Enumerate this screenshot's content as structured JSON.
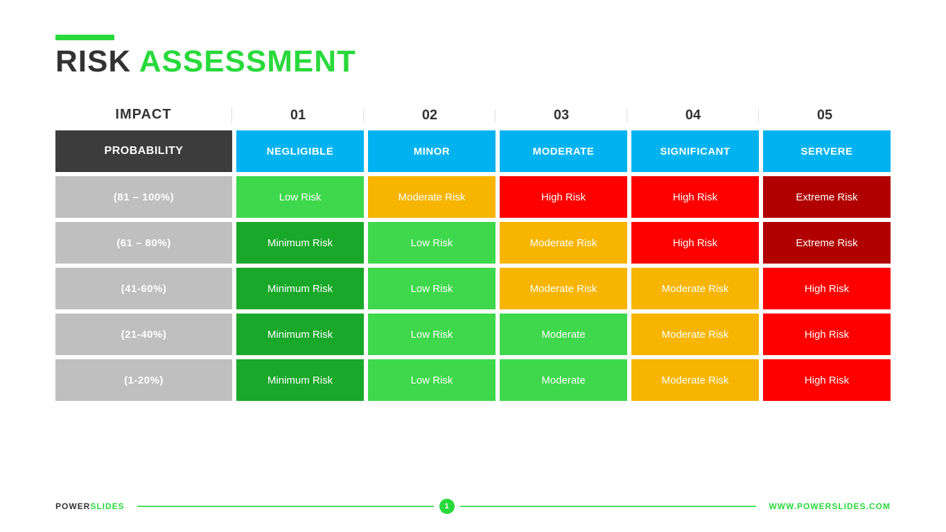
{
  "colors": {
    "accent": "#29d93c",
    "title_dark": "#333333",
    "header_probability_bg": "#3c3c3c",
    "header_impact_bg": "#00b3f0",
    "row_label_bg": "#bfbfbf",
    "risk": {
      "minimum": "#1aa82a",
      "low": "#3fd84c",
      "moderate": "#f7b500",
      "high": "#ff0000",
      "extreme": "#b00000"
    },
    "text_white": "#ffffff"
  },
  "title": {
    "word1": "RISK",
    "word2": "ASSESSMENT"
  },
  "impact_header_label": "IMPACT",
  "impact_numbers": [
    "01",
    "02",
    "03",
    "04",
    "05"
  ],
  "probability_header_label": "PROBABILITY",
  "impact_levels": [
    "NEGLIGIBLE",
    "MINOR",
    "MODERATE",
    "SIGNIFICANT",
    "SERVERE"
  ],
  "rows": [
    {
      "label": "(81 – 100%)",
      "cells": [
        {
          "text": "Low Risk",
          "colorKey": "low"
        },
        {
          "text": "Moderate Risk",
          "colorKey": "moderate"
        },
        {
          "text": "High Risk",
          "colorKey": "high"
        },
        {
          "text": "High Risk",
          "colorKey": "high"
        },
        {
          "text": "Extreme Risk",
          "colorKey": "extreme"
        }
      ]
    },
    {
      "label": "(61 – 80%)",
      "cells": [
        {
          "text": "Minimum Risk",
          "colorKey": "minimum"
        },
        {
          "text": "Low Risk",
          "colorKey": "low"
        },
        {
          "text": "Moderate Risk",
          "colorKey": "moderate"
        },
        {
          "text": "High Risk",
          "colorKey": "high"
        },
        {
          "text": "Extreme Risk",
          "colorKey": "extreme"
        }
      ]
    },
    {
      "label": "(41-60%)",
      "cells": [
        {
          "text": "Minimum Risk",
          "colorKey": "minimum"
        },
        {
          "text": "Low Risk",
          "colorKey": "low"
        },
        {
          "text": "Moderate Risk",
          "colorKey": "moderate"
        },
        {
          "text": "Moderate Risk",
          "colorKey": "moderate"
        },
        {
          "text": "High Risk",
          "colorKey": "high"
        }
      ]
    },
    {
      "label": "(21-40%)",
      "cells": [
        {
          "text": "Minimum Risk",
          "colorKey": "minimum"
        },
        {
          "text": "Low Risk",
          "colorKey": "low"
        },
        {
          "text": "Moderate",
          "colorKey": "low"
        },
        {
          "text": "Moderate Risk",
          "colorKey": "moderate"
        },
        {
          "text": "High Risk",
          "colorKey": "high"
        }
      ]
    },
    {
      "label": "(1-20%)",
      "cells": [
        {
          "text": "Minimum Risk",
          "colorKey": "minimum"
        },
        {
          "text": "Low Risk",
          "colorKey": "low"
        },
        {
          "text": "Moderate",
          "colorKey": "low"
        },
        {
          "text": "Moderate Risk",
          "colorKey": "moderate"
        },
        {
          "text": "High Risk",
          "colorKey": "high"
        }
      ]
    }
  ],
  "footer": {
    "brand_a": "POWER",
    "brand_b": "SLIDES",
    "page": "1",
    "url": "WWW.POWERSLIDES.COM"
  }
}
